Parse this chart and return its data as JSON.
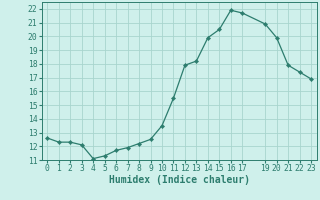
{
  "x": [
    0,
    1,
    2,
    3,
    4,
    5,
    6,
    7,
    8,
    9,
    10,
    11,
    12,
    13,
    14,
    15,
    16,
    17,
    19,
    20,
    21,
    22,
    23
  ],
  "y": [
    12.6,
    12.3,
    12.3,
    12.1,
    11.1,
    11.3,
    11.7,
    11.9,
    12.2,
    12.5,
    13.5,
    15.5,
    17.9,
    18.2,
    19.9,
    20.5,
    21.9,
    21.7,
    20.9,
    19.9,
    17.9,
    17.4,
    16.9
  ],
  "line_color": "#2d7d6e",
  "marker": "D",
  "marker_size": 2.2,
  "bg_color": "#cff0eb",
  "grid_color": "#a8d5ce",
  "xlabel": "Humidex (Indice chaleur)",
  "xlim": [
    -0.5,
    23.5
  ],
  "ylim": [
    11,
    22.5
  ],
  "yticks": [
    11,
    12,
    13,
    14,
    15,
    16,
    17,
    18,
    19,
    20,
    21,
    22
  ],
  "xticks": [
    0,
    1,
    2,
    3,
    4,
    5,
    6,
    7,
    8,
    9,
    10,
    11,
    12,
    13,
    14,
    15,
    16,
    17,
    19,
    20,
    21,
    22,
    23
  ],
  "tick_color": "#2d7d6e",
  "label_fontsize": 7,
  "tick_fontsize": 5.8,
  "linewidth": 0.9
}
